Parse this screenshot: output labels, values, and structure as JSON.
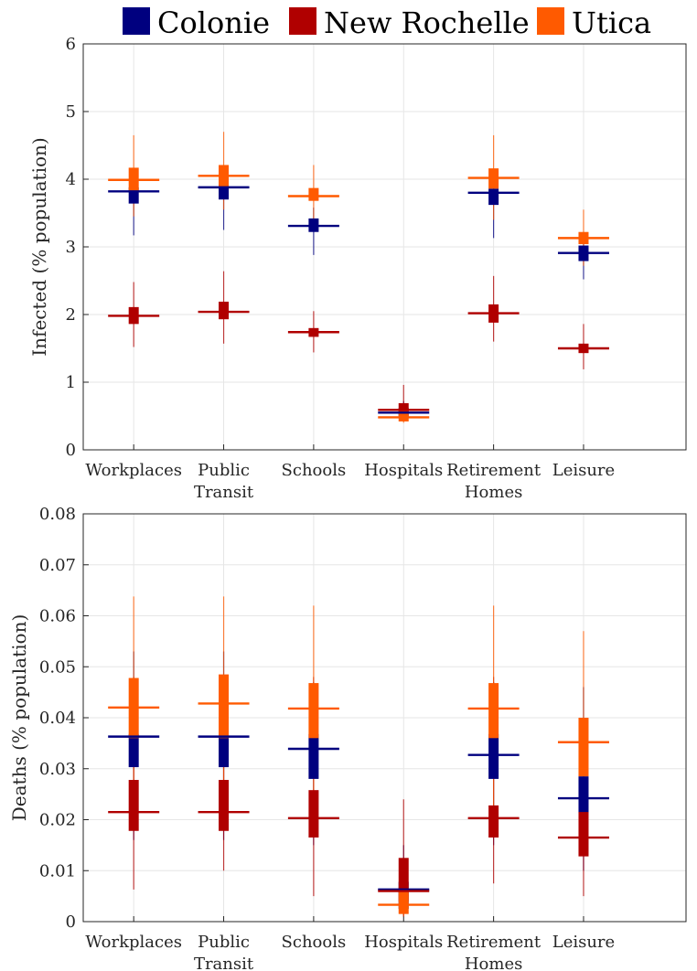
{
  "legend": [
    {
      "name": "Colonie",
      "color": "#00007f"
    },
    {
      "name": "New Rochelle",
      "color": "#b00000"
    },
    {
      "name": "Utica",
      "color": "#ff5a00"
    }
  ],
  "chart_data": [
    {
      "type": "box",
      "ylabel": "Infected (% population)",
      "ylim": [
        0,
        6
      ],
      "yticks": [
        "0",
        "1",
        "2",
        "3",
        "4",
        "5",
        "6"
      ],
      "grid": true,
      "categories": [
        [
          "Workplaces"
        ],
        [
          "Public",
          "Transit"
        ],
        [
          "Schools"
        ],
        [
          "Hospitals"
        ],
        [
          "Retirement",
          "Homes"
        ],
        [
          "Leisure"
        ]
      ],
      "series": [
        {
          "name": "Colonie",
          "color": "#00007f",
          "boxes": [
            {
              "median": 3.82,
              "q1": 3.64,
              "q3": 3.88,
              "min": 3.17,
              "max": 4.05
            },
            {
              "median": 3.88,
              "q1": 3.7,
              "q3": 3.93,
              "min": 3.25,
              "max": 4.1
            },
            {
              "median": 3.31,
              "q1": 3.22,
              "q3": 3.42,
              "min": 2.88,
              "max": 3.58
            },
            {
              "median": 0.55,
              "q1": 0.47,
              "q3": 0.62,
              "min": 0.42,
              "max": 0.72
            },
            {
              "median": 3.8,
              "q1": 3.62,
              "q3": 3.86,
              "min": 3.13,
              "max": 4.0
            },
            {
              "median": 2.91,
              "q1": 2.79,
              "q3": 3.02,
              "min": 2.52,
              "max": 3.2
            }
          ]
        },
        {
          "name": "New Rochelle",
          "color": "#b00000",
          "boxes": [
            {
              "median": 1.98,
              "q1": 1.86,
              "q3": 2.11,
              "min": 1.52,
              "max": 2.48
            },
            {
              "median": 2.04,
              "q1": 1.93,
              "q3": 2.19,
              "min": 1.57,
              "max": 2.64
            },
            {
              "median": 1.74,
              "q1": 1.67,
              "q3": 1.8,
              "min": 1.44,
              "max": 2.05
            },
            {
              "median": 0.59,
              "q1": 0.53,
              "q3": 0.69,
              "min": 0.42,
              "max": 0.96
            },
            {
              "median": 2.02,
              "q1": 1.88,
              "q3": 2.15,
              "min": 1.6,
              "max": 2.57
            },
            {
              "median": 1.5,
              "q1": 1.43,
              "q3": 1.57,
              "min": 1.19,
              "max": 1.86
            }
          ]
        },
        {
          "name": "Utica",
          "color": "#ff5a00",
          "boxes": [
            {
              "median": 3.99,
              "q1": 3.81,
              "q3": 4.17,
              "min": 3.45,
              "max": 4.65
            },
            {
              "median": 4.05,
              "q1": 3.87,
              "q3": 4.21,
              "min": 3.55,
              "max": 4.7
            },
            {
              "median": 3.75,
              "q1": 3.68,
              "q3": 3.87,
              "min": 3.35,
              "max": 4.21
            },
            {
              "median": 0.48,
              "q1": 0.42,
              "q3": 0.57,
              "min": 0.4,
              "max": 0.66
            },
            {
              "median": 4.02,
              "q1": 3.86,
              "q3": 4.16,
              "min": 3.4,
              "max": 4.65
            },
            {
              "median": 3.13,
              "q1": 3.04,
              "q3": 3.22,
              "min": 2.72,
              "max": 3.55
            }
          ]
        }
      ]
    },
    {
      "type": "box",
      "ylabel": "Deaths (% population)",
      "ylim": [
        0,
        0.08
      ],
      "yticks": [
        "0",
        "0.01",
        "0.02",
        "0.03",
        "0.04",
        "0.05",
        "0.06",
        "0.07",
        "0.08"
      ],
      "grid": true,
      "categories": [
        [
          "Workplaces"
        ],
        [
          "Public",
          "Transit"
        ],
        [
          "Schools"
        ],
        [
          "Hospitals"
        ],
        [
          "Retirement",
          "Homes"
        ],
        [
          "Leisure"
        ]
      ],
      "series": [
        {
          "name": "Colonie",
          "color": "#00007f",
          "boxes": [
            {
              "median": 0.0363,
              "q1": 0.0303,
              "q3": 0.0368,
              "min": 0.016,
              "max": 0.053
            },
            {
              "median": 0.0363,
              "q1": 0.0303,
              "q3": 0.0368,
              "min": 0.016,
              "max": 0.053
            },
            {
              "median": 0.0339,
              "q1": 0.028,
              "q3": 0.0368,
              "min": 0.015,
              "max": 0.047
            },
            {
              "median": 0.0063,
              "q1": 0.0025,
              "q3": 0.0078,
              "min": 0.001,
              "max": 0.015
            },
            {
              "median": 0.0327,
              "q1": 0.028,
              "q3": 0.0368,
              "min": 0.015,
              "max": 0.047
            },
            {
              "median": 0.0242,
              "q1": 0.0213,
              "q3": 0.0285,
              "min": 0.01,
              "max": 0.046
            }
          ]
        },
        {
          "name": "New Rochelle",
          "color": "#b00000",
          "boxes": [
            {
              "median": 0.0215,
              "q1": 0.0178,
              "q3": 0.0278,
              "min": 0.0063,
              "max": 0.048
            },
            {
              "median": 0.0215,
              "q1": 0.0178,
              "q3": 0.0278,
              "min": 0.01,
              "max": 0.048
            },
            {
              "median": 0.0203,
              "q1": 0.0165,
              "q3": 0.0258,
              "min": 0.005,
              "max": 0.048
            },
            {
              "median": 0.006,
              "q1": 0.004,
              "q3": 0.0125,
              "min": 0.001,
              "max": 0.024
            },
            {
              "median": 0.0203,
              "q1": 0.0165,
              "q3": 0.0228,
              "min": 0.0075,
              "max": 0.048
            },
            {
              "median": 0.0165,
              "q1": 0.0128,
              "q3": 0.0215,
              "min": 0.005,
              "max": 0.032
            }
          ]
        },
        {
          "name": "Utica",
          "color": "#ff5a00",
          "boxes": [
            {
              "median": 0.042,
              "q1": 0.036,
              "q3": 0.0478,
              "min": 0.02,
              "max": 0.0638
            },
            {
              "median": 0.0428,
              "q1": 0.036,
              "q3": 0.0485,
              "min": 0.02,
              "max": 0.0638
            },
            {
              "median": 0.0418,
              "q1": 0.036,
              "q3": 0.0468,
              "min": 0.02,
              "max": 0.062
            },
            {
              "median": 0.0033,
              "q1": 0.0015,
              "q3": 0.006,
              "min": 0.001,
              "max": 0.012
            },
            {
              "median": 0.0418,
              "q1": 0.036,
              "q3": 0.0468,
              "min": 0.02,
              "max": 0.062
            },
            {
              "median": 0.0352,
              "q1": 0.0285,
              "q3": 0.04,
              "min": 0.015,
              "max": 0.057
            }
          ]
        }
      ]
    }
  ]
}
